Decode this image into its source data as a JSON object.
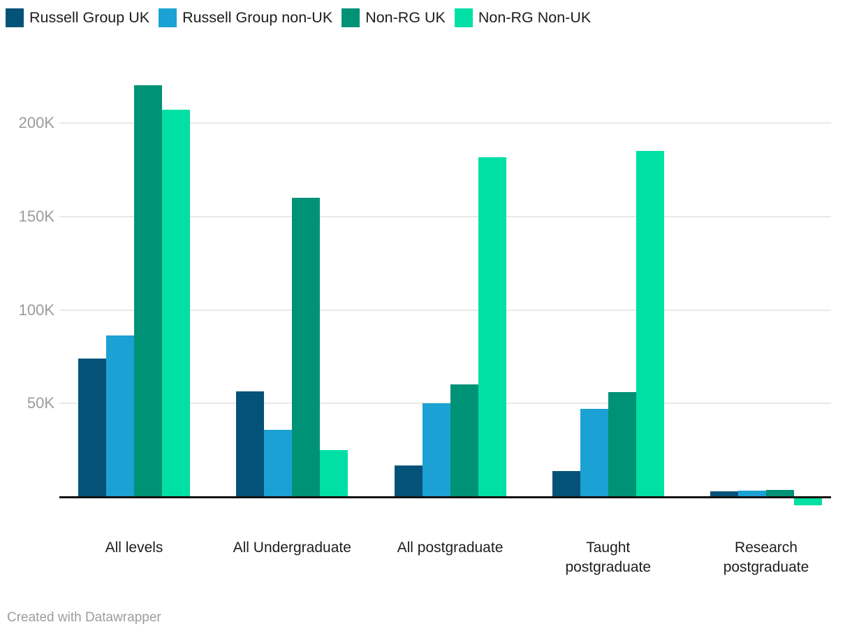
{
  "chart_data": {
    "type": "bar",
    "title": "",
    "categories": [
      "All levels",
      "All Undergraduate",
      "All postgraduate",
      "Taught postgraduate",
      "Research postgraduate"
    ],
    "category_lines": [
      [
        "All levels"
      ],
      [
        "All Undergraduate"
      ],
      [
        "All postgraduate"
      ],
      [
        "Taught",
        "postgraduate"
      ],
      [
        "Research",
        "postgraduate"
      ]
    ],
    "series": [
      {
        "name": "Russell Group UK",
        "color": "#045278",
        "values": [
          74000,
          56500,
          17000,
          14000,
          3000
        ]
      },
      {
        "name": "Russell Group non-UK",
        "color": "#1CA1D4",
        "values": [
          86500,
          36000,
          50000,
          47000,
          3400
        ]
      },
      {
        "name": "Non-RG UK",
        "color": "#009276",
        "values": [
          220000,
          160000,
          60000,
          56000,
          3700
        ]
      },
      {
        "name": "Non-RG Non-UK",
        "color": "#00E0A4",
        "values": [
          207000,
          25000,
          181500,
          185000,
          -4000
        ]
      }
    ],
    "y_ticks": [
      {
        "label": "50K",
        "value": 50000
      },
      {
        "label": "100K",
        "value": 100000
      },
      {
        "label": "150K",
        "value": 150000
      },
      {
        "label": "200K",
        "value": 200000
      }
    ],
    "ylim": [
      -5000,
      230000
    ],
    "grid": true,
    "legend_position": "top"
  },
  "footer": {
    "credit": "Created with Datawrapper"
  },
  "colors": {
    "background": "#ffffff",
    "grid": "#e9e9e9",
    "axis_tick_text": "#9b9b9b",
    "baseline": "#121212",
    "category_text": "#1d1d1d",
    "credit_text": "#9d9d9d"
  }
}
